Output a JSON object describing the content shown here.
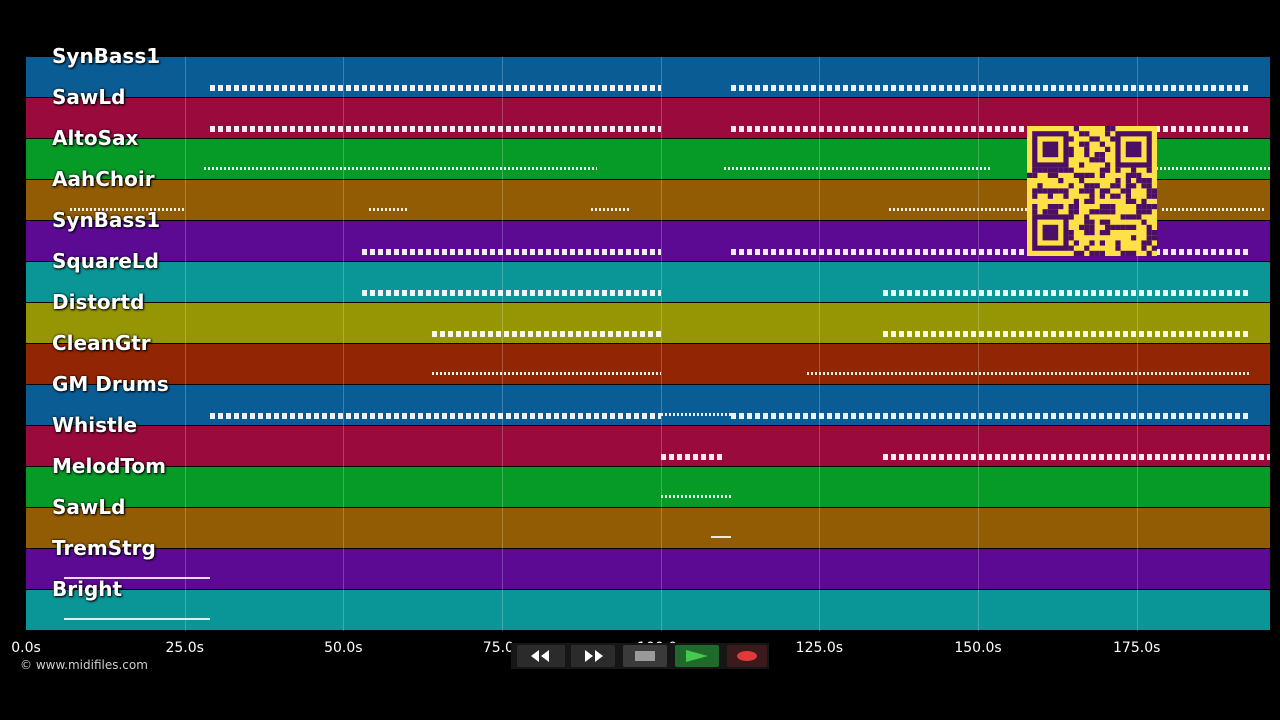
{
  "tracks": [
    {
      "label": "SynBass1",
      "color": "#0a5c94"
    },
    {
      "label": "SawLd",
      "color": "#9a0a3c"
    },
    {
      "label": "AltoSax",
      "color": "#069a27"
    },
    {
      "label": "AahChoir",
      "color": "#925c04"
    },
    {
      "label": "SynBass1",
      "color": "#5c0a94"
    },
    {
      "label": "SquareLd",
      "color": "#0a9696"
    },
    {
      "label": "Distortd",
      "color": "#969604"
    },
    {
      "label": "CleanGtr",
      "color": "#922604"
    },
    {
      "label": "GM Drums",
      "color": "#0a5c94"
    },
    {
      "label": "Whistle",
      "color": "#9a0a3c"
    },
    {
      "label": "MelodTom",
      "color": "#069a27"
    },
    {
      "label": "SawLd",
      "color": "#925c04"
    },
    {
      "label": "TremStrg",
      "color": "#5c0a94"
    },
    {
      "label": "Bright",
      "color": "#0a9696"
    }
  ],
  "timeline": {
    "ticks": [
      "0.0s",
      "25.0s",
      "50.0s",
      "75.0s",
      "100.0s",
      "125.0s",
      "150.0s",
      "175.0s"
    ],
    "tick_seconds": [
      0,
      25,
      50,
      75,
      100,
      125,
      150,
      175
    ],
    "duration_seconds": 196
  },
  "notes": [
    {
      "track": 0,
      "start": 29,
      "end": 100,
      "style": "notes"
    },
    {
      "track": 0,
      "start": 111,
      "end": 193,
      "style": "notes"
    },
    {
      "track": 1,
      "start": 29,
      "end": 100,
      "style": "notes"
    },
    {
      "track": 1,
      "start": 111,
      "end": 193,
      "style": "notes"
    },
    {
      "track": 2,
      "start": 28,
      "end": 90,
      "style": "dots"
    },
    {
      "track": 2,
      "start": 110,
      "end": 152,
      "style": "dots"
    },
    {
      "track": 2,
      "start": 178,
      "end": 196,
      "style": "dots"
    },
    {
      "track": 3,
      "start": 7,
      "end": 25,
      "style": "dots"
    },
    {
      "track": 3,
      "start": 54,
      "end": 60,
      "style": "dots"
    },
    {
      "track": 3,
      "start": 89,
      "end": 95,
      "style": "dots"
    },
    {
      "track": 3,
      "start": 136,
      "end": 158,
      "style": "dots"
    },
    {
      "track": 3,
      "start": 179,
      "end": 195,
      "style": "dots"
    },
    {
      "track": 4,
      "start": 53,
      "end": 100,
      "style": "notes"
    },
    {
      "track": 4,
      "start": 111,
      "end": 193,
      "style": "notes"
    },
    {
      "track": 5,
      "start": 53,
      "end": 100,
      "style": "notes"
    },
    {
      "track": 5,
      "start": 135,
      "end": 193,
      "style": "notes"
    },
    {
      "track": 6,
      "start": 64,
      "end": 100,
      "style": "notes"
    },
    {
      "track": 6,
      "start": 135,
      "end": 193,
      "style": "notes"
    },
    {
      "track": 7,
      "start": 64,
      "end": 100,
      "style": "dots"
    },
    {
      "track": 7,
      "start": 123,
      "end": 193,
      "style": "dots"
    },
    {
      "track": 8,
      "start": 29,
      "end": 100,
      "style": "notes"
    },
    {
      "track": 8,
      "start": 100,
      "end": 111,
      "style": "dots"
    },
    {
      "track": 8,
      "start": 111,
      "end": 193,
      "style": "notes"
    },
    {
      "track": 9,
      "start": 100,
      "end": 110,
      "style": "notes"
    },
    {
      "track": 9,
      "start": 135,
      "end": 196,
      "style": "notes"
    },
    {
      "track": 10,
      "start": 100,
      "end": 111,
      "style": "dots"
    },
    {
      "track": 11,
      "start": 108,
      "end": 111,
      "style": "lines"
    },
    {
      "track": 12,
      "start": 6,
      "end": 29,
      "style": "lines"
    },
    {
      "track": 13,
      "start": 6,
      "end": 29,
      "style": "lines"
    }
  ],
  "copyright": "© www.midifiles.com",
  "transport": {
    "rewind": "rewind-icon",
    "fast_forward": "fast-forward-icon",
    "stop": "stop-icon",
    "play": "play-icon",
    "record": "record-icon"
  },
  "qr": {
    "color": "#ffe047",
    "dark": "#4b0f63"
  }
}
